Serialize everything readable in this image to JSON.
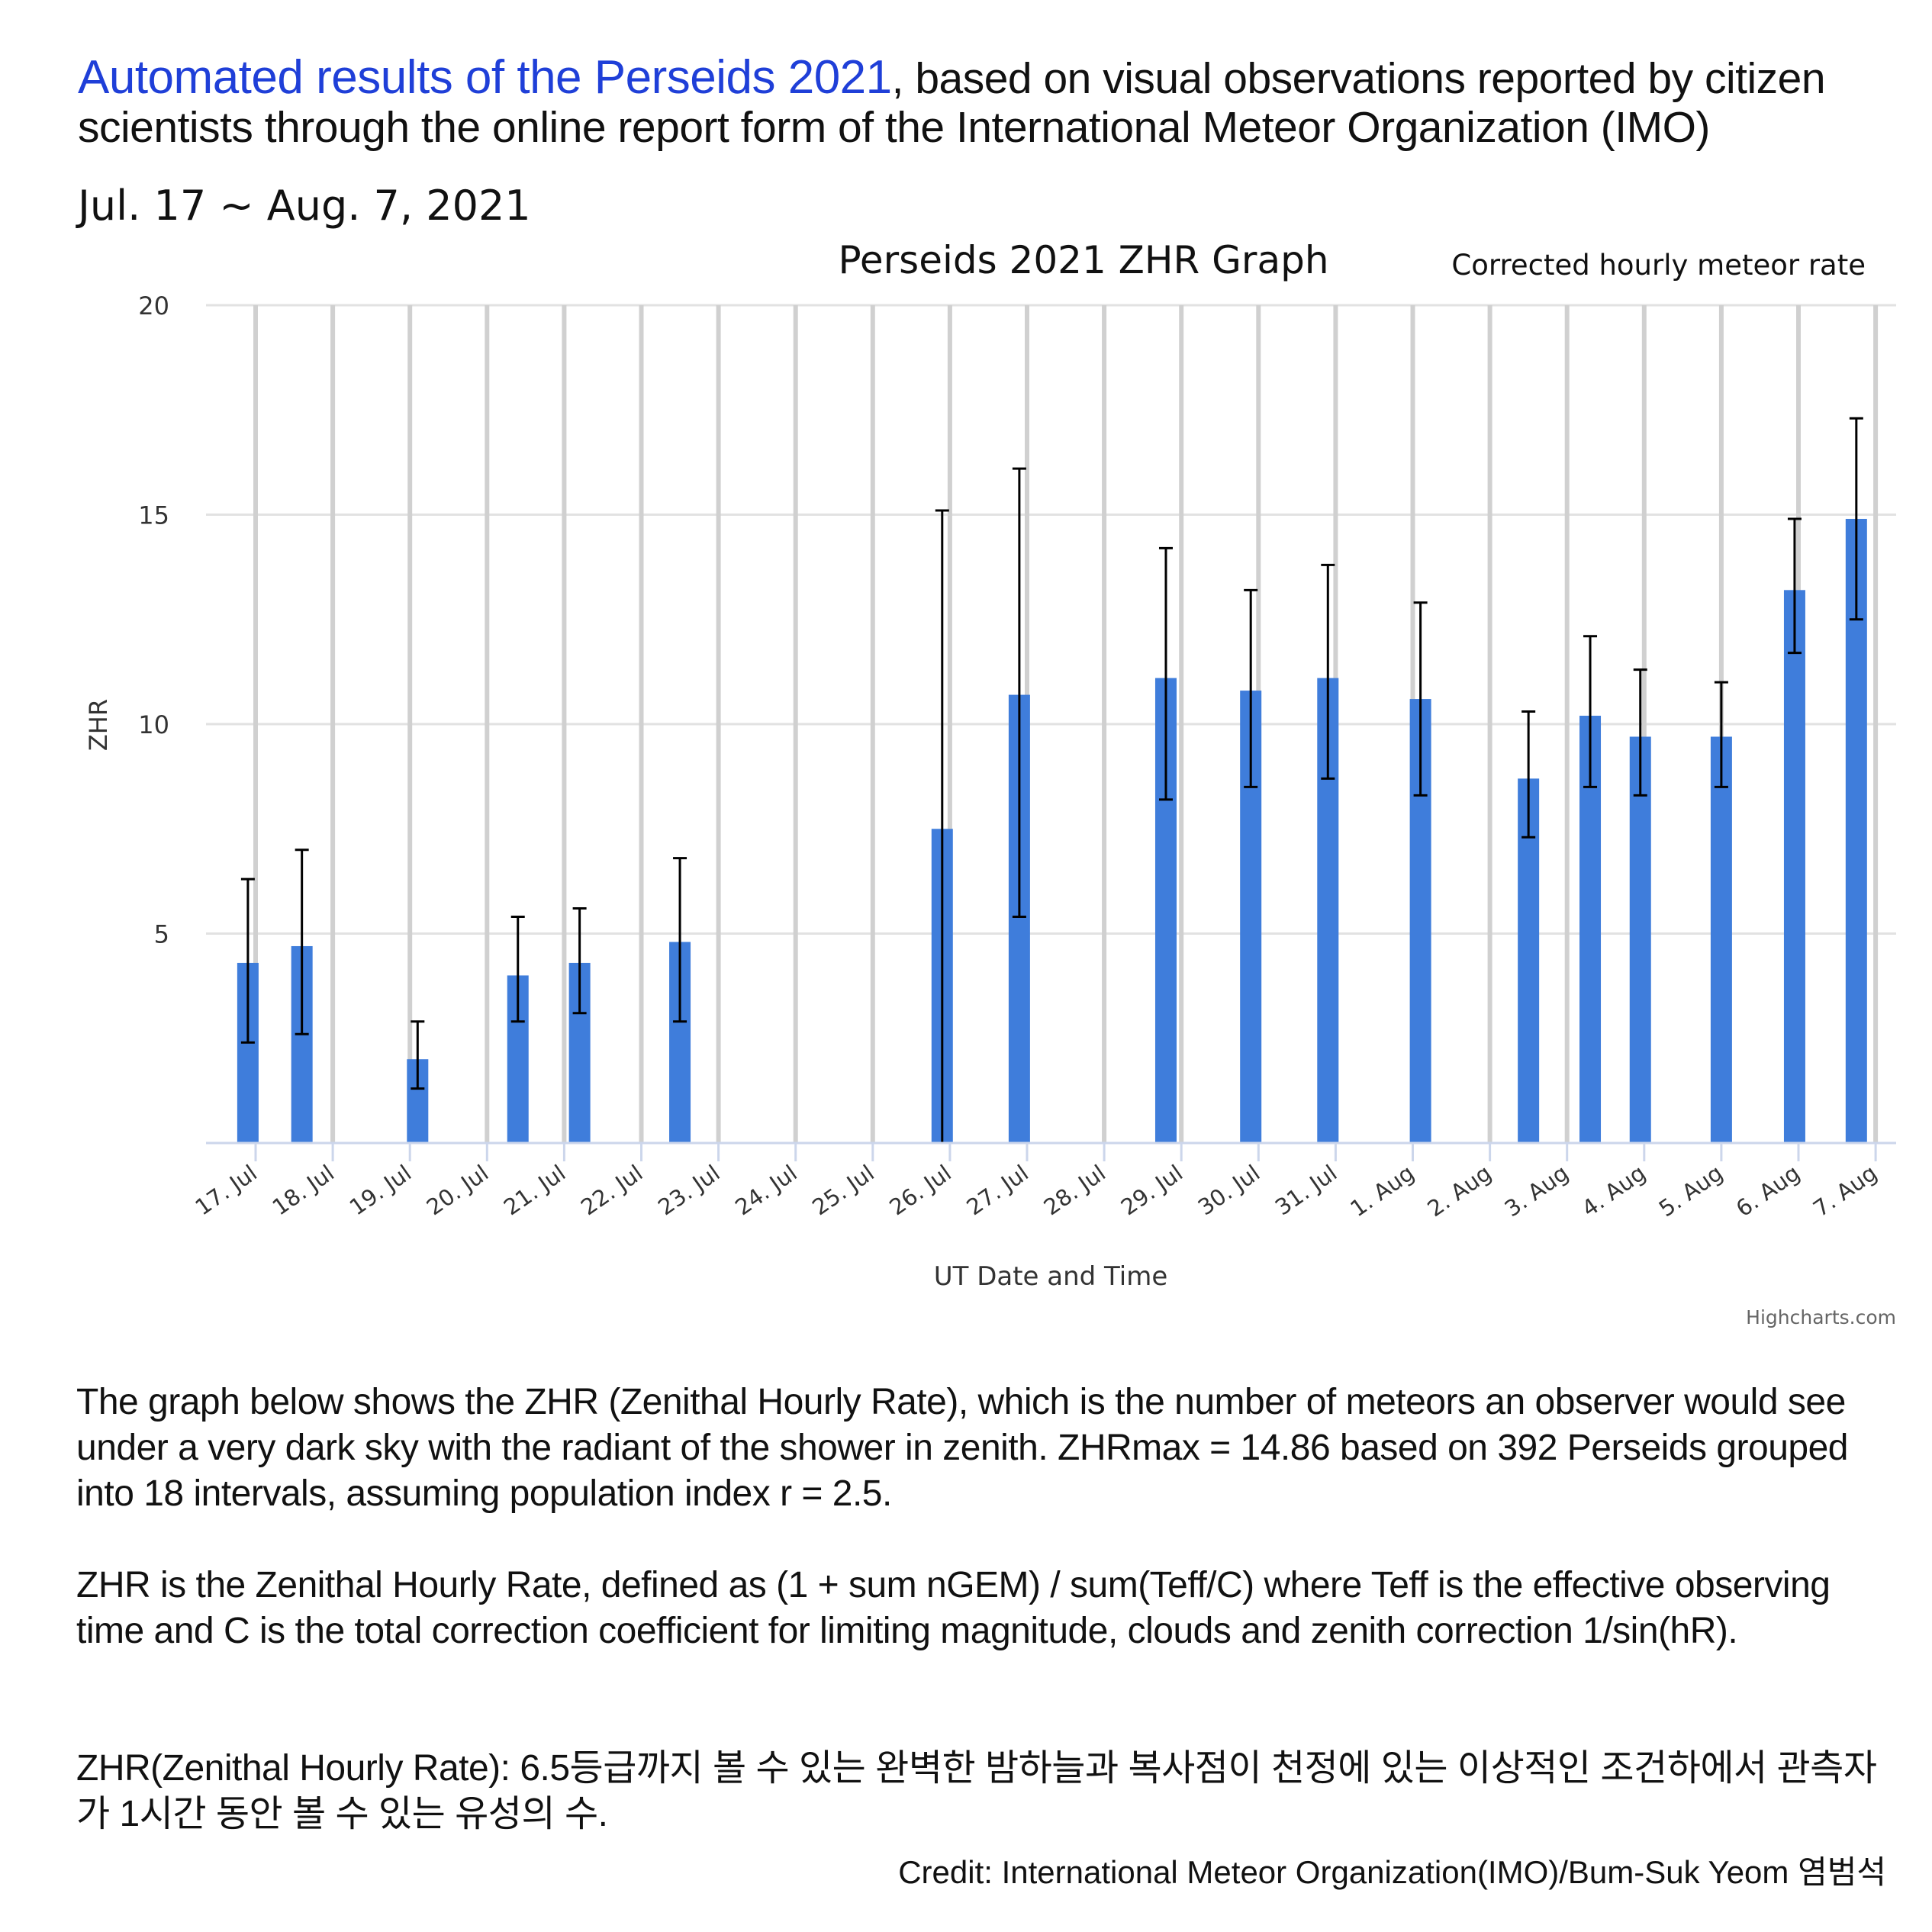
{
  "header": {
    "title_highlight": "Automated results of the Perseids 2021",
    "title_rest": ", based on visual observations reported by citizen scientists through the online report form of the International Meteor Organization (IMO)",
    "date_range": "Jul. 17 ~ Aug. 7, 2021"
  },
  "colors": {
    "accent_title": "#1f3fd8",
    "bar": "#3f7ddb",
    "error_bar": "#000000",
    "grid": "#d0d0d0"
  },
  "chart_data": {
    "type": "bar",
    "title": "Perseids 2021 ZHR Graph",
    "subtitle": "Corrected hourly meteor rate",
    "xlabel": "UT Date and Time",
    "ylabel": "ZHR",
    "ylim": [
      0,
      20
    ],
    "yticks": [
      5,
      10,
      15,
      20
    ],
    "xlim": [
      "17. Jul",
      "7. Aug"
    ],
    "x_tick_labels": [
      "17. Jul",
      "18. Jul",
      "19. Jul",
      "20. Jul",
      "21. Jul",
      "22. Jul",
      "23. Jul",
      "24. Jul",
      "25. Jul",
      "26. Jul",
      "27. Jul",
      "28. Jul",
      "29. Jul",
      "30. Jul",
      "31. Jul",
      "1. Aug",
      "2. Aug",
      "3. Aug",
      "4. Aug",
      "5. Aug",
      "6. Aug",
      "7. Aug"
    ],
    "credits": "Highcharts.com",
    "series": [
      {
        "name": "ZHR",
        "points": [
          {
            "day": -0.1,
            "zhr": 4.3,
            "low": 2.4,
            "high": 6.3
          },
          {
            "day": 0.6,
            "zhr": 4.7,
            "low": 2.6,
            "high": 7.0
          },
          {
            "day": 2.1,
            "zhr": 2.0,
            "low": 1.3,
            "high": 2.9
          },
          {
            "day": 3.4,
            "zhr": 4.0,
            "low": 2.9,
            "high": 5.4
          },
          {
            "day": 4.2,
            "zhr": 4.3,
            "low": 3.1,
            "high": 5.6
          },
          {
            "day": 5.5,
            "zhr": 4.8,
            "low": 2.9,
            "high": 6.8
          },
          {
            "day": 8.9,
            "zhr": 7.5,
            "low": 0.0,
            "high": 15.1
          },
          {
            "day": 9.9,
            "zhr": 10.7,
            "low": 5.4,
            "high": 16.1
          },
          {
            "day": 11.8,
            "zhr": 11.1,
            "low": 8.2,
            "high": 14.2
          },
          {
            "day": 12.9,
            "zhr": 10.8,
            "low": 8.5,
            "high": 13.2
          },
          {
            "day": 13.9,
            "zhr": 11.1,
            "low": 8.7,
            "high": 13.8
          },
          {
            "day": 15.1,
            "zhr": 10.6,
            "low": 8.3,
            "high": 12.9
          },
          {
            "day": 16.5,
            "zhr": 8.7,
            "low": 7.3,
            "high": 10.3
          },
          {
            "day": 17.3,
            "zhr": 10.2,
            "low": 8.5,
            "high": 12.1
          },
          {
            "day": 17.95,
            "zhr": 9.7,
            "low": 8.3,
            "high": 11.3
          },
          {
            "day": 19.0,
            "zhr": 9.7,
            "low": 8.5,
            "high": 11.0
          },
          {
            "day": 19.95,
            "zhr": 13.2,
            "low": 11.7,
            "high": 14.9
          },
          {
            "day": 20.75,
            "zhr": 14.9,
            "low": 12.5,
            "high": 17.3
          }
        ]
      }
    ]
  },
  "body": {
    "para1": "The graph below shows the ZHR (Zenithal Hourly Rate), which is the number of meteors an observer would see under a very dark sky with the radiant of the shower in zenith. ZHRmax = 14.86 based on 392 Perseids grouped into 18 intervals, assuming population index r = 2.5.",
    "para2": "ZHR is the Zenithal Hourly Rate, defined as (1 + sum nGEM) / sum(Teff/C) where Teff is the effective observing time and C is the total correction coefficient for limiting magnitude, clouds and zenith correction 1/sin(hR).",
    "para3": "ZHR(Zenithal Hourly Rate): 6.5등급까지 볼 수 있는 완벽한 밤하늘과 복사점이 천정에 있는 이상적인 조건하에서 관측자가 1시간 동안 볼 수 있는 유성의 수.",
    "credit": "Credit: International Meteor Organization(IMO)/Bum-Suk Yeom 염범석"
  }
}
